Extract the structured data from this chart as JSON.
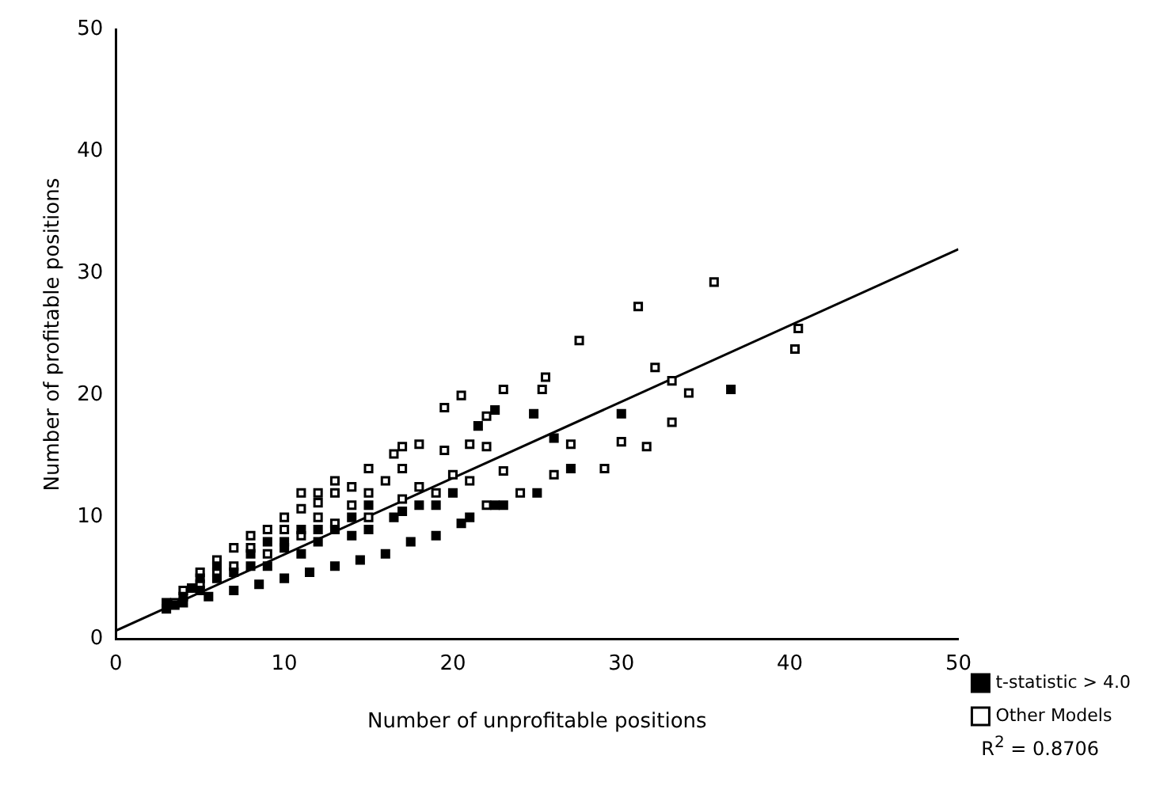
{
  "chart_data": {
    "type": "scatter",
    "xlabel": "Number of unprofitable positions",
    "ylabel": "Number of profitable positions",
    "xlim": [
      0,
      50
    ],
    "ylim": [
      0,
      50
    ],
    "xticks": [
      0,
      10,
      20,
      30,
      40,
      50
    ],
    "yticks": [
      0,
      10,
      20,
      30,
      40,
      50
    ],
    "grid": false,
    "legend": "bottom right",
    "annotations": [
      "R$^{2}$ = 0.8706"
    ],
    "series": [
      {
        "name": "t-statistic > 4.0",
        "color": "#000000",
        "marker": "square",
        "x": [
          36.5,
          24.8,
          22.5,
          21.5,
          30,
          26,
          27,
          25,
          23,
          21,
          22.5,
          20.5,
          19,
          17.5,
          16,
          14.5,
          13,
          11.5,
          10,
          8.5,
          7,
          5.5,
          4,
          3,
          16.5,
          15,
          14,
          12,
          11,
          10,
          9,
          8,
          7,
          6,
          5,
          4,
          3.5,
          13,
          18,
          20,
          19,
          17,
          15,
          12,
          9,
          8,
          6,
          5,
          4.5,
          3,
          10,
          11,
          14
        ],
        "values": [
          20.5,
          18.5,
          18.8,
          17.5,
          18.5,
          16.5,
          14,
          12,
          11,
          10,
          11,
          9.5,
          8.5,
          8,
          7,
          6.5,
          6,
          5.5,
          5,
          4.5,
          4,
          3.5,
          3,
          2.5,
          10,
          9,
          8.5,
          8,
          7,
          7.5,
          6,
          6,
          5.5,
          5,
          4,
          3.5,
          2.8,
          9,
          11,
          12,
          11,
          10.5,
          11,
          9,
          8,
          7,
          6,
          5,
          4.2,
          3,
          8,
          9,
          10
        ]
      },
      {
        "name": "Other Models",
        "color": "#000000",
        "marker": "square",
        "x": [
          35.5,
          31,
          40.5,
          40.3,
          27.5,
          33,
          32,
          34,
          33,
          31.5,
          29,
          30,
          25.5,
          25.3,
          23,
          20.5,
          19.5,
          22,
          22,
          21,
          18,
          17,
          16.5,
          19.5,
          20,
          19,
          17,
          15,
          14,
          13,
          12,
          11,
          10,
          9,
          8,
          7,
          6,
          5,
          16,
          18,
          21,
          23,
          24,
          22,
          26,
          27,
          15,
          13,
          11,
          9,
          7,
          5,
          4,
          3.5,
          10,
          12,
          14,
          8,
          6,
          17,
          15,
          13,
          11,
          12
        ],
        "values": [
          29.3,
          27.3,
          25.5,
          23.8,
          24.5,
          21.2,
          22.3,
          20.2,
          17.8,
          15.8,
          14,
          16.2,
          21.5,
          20.5,
          20.5,
          20,
          19,
          18.3,
          15.8,
          16,
          16,
          15.8,
          15.2,
          15.5,
          13.5,
          12,
          11.5,
          12,
          11,
          12,
          11.2,
          10.7,
          10,
          9,
          8.5,
          7.5,
          6.5,
          5.5,
          13,
          12.5,
          13,
          13.8,
          12,
          11,
          13.5,
          16,
          10,
          9.5,
          8.5,
          7,
          6,
          4.5,
          4,
          3,
          9,
          10,
          12.5,
          7.5,
          5.5,
          14,
          14,
          13,
          12,
          12
        ]
      },
      {
        "type": "line",
        "color": "#000000",
        "marker": "none",
        "line_style": "solid",
        "x": [
          0,
          50
        ],
        "values": [
          0.7,
          32
        ]
      }
    ]
  }
}
